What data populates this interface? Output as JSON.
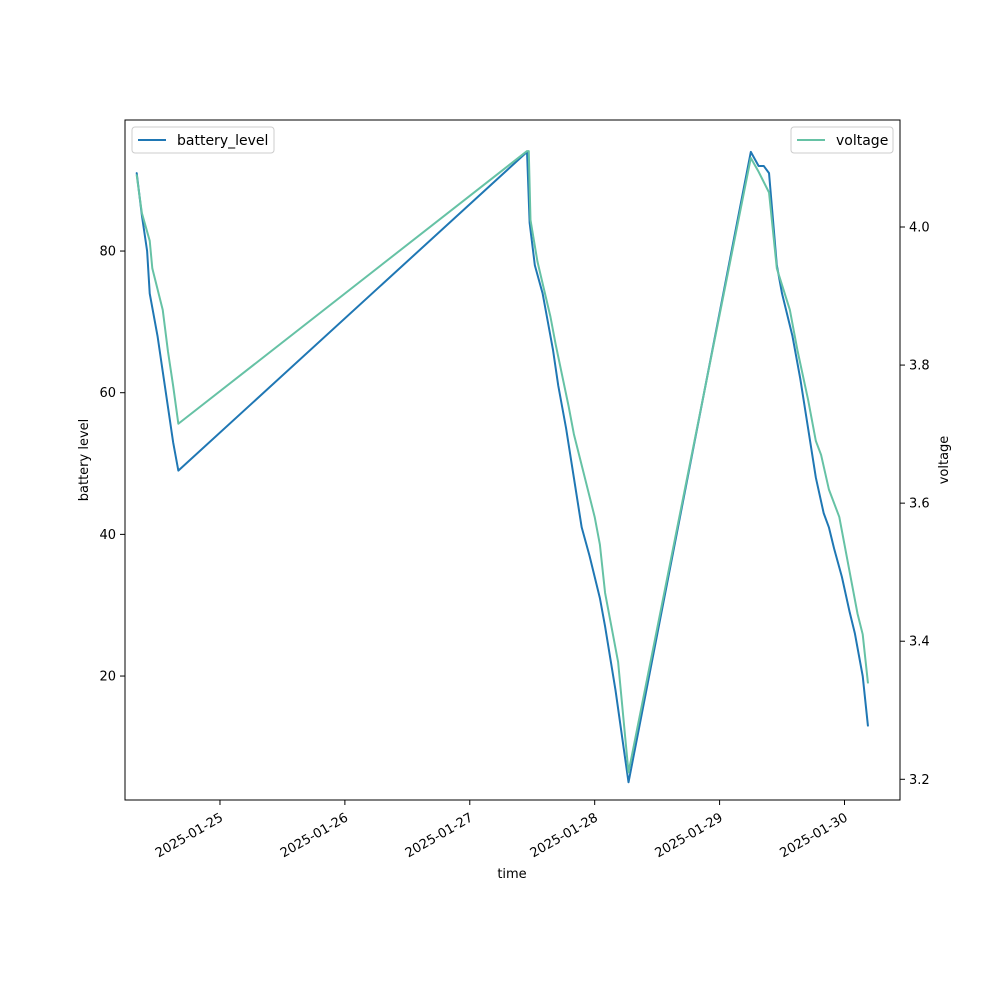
{
  "chart_data": {
    "type": "line",
    "xlabel": "time",
    "x_ticks": [
      "2025-01-25",
      "2025-01-26",
      "2025-01-27",
      "2025-01-28",
      "2025-01-29",
      "2025-01-30"
    ],
    "x_range": [
      "2025-01-24 05:45",
      "2025-01-30 10:40"
    ],
    "left_axis": {
      "label": "battery level",
      "ylim": [
        2.5,
        98.5
      ],
      "ticks": [
        20,
        40,
        60,
        80
      ]
    },
    "right_axis": {
      "label": "voltage",
      "ylim": [
        3.17,
        4.155
      ],
      "ticks": [
        "3.2",
        "3.4",
        "3.6",
        "3.8",
        "4.0"
      ]
    },
    "legend_left": {
      "placement": "upper-left"
    },
    "legend_right": {
      "placement": "upper-right"
    },
    "series": [
      {
        "name": "battery_level",
        "axis": "left",
        "color": "#1f77b4",
        "points": [
          [
            "2025-01-24 08:00",
            91
          ],
          [
            "2025-01-24 09:00",
            85
          ],
          [
            "2025-01-24 10:00",
            80
          ],
          [
            "2025-01-24 10:30",
            74
          ],
          [
            "2025-01-24 12:00",
            68
          ],
          [
            "2025-01-24 13:00",
            63
          ],
          [
            "2025-01-24 14:00",
            58
          ],
          [
            "2025-01-24 15:00",
            53
          ],
          [
            "2025-01-24 16:00",
            49
          ],
          [
            "2025-01-27 11:00",
            94
          ],
          [
            "2025-01-27 11:30",
            84
          ],
          [
            "2025-01-27 12:30",
            78
          ],
          [
            "2025-01-27 14:00",
            74
          ],
          [
            "2025-01-27 15:00",
            70
          ],
          [
            "2025-01-27 16:00",
            66
          ],
          [
            "2025-01-27 17:00",
            61
          ],
          [
            "2025-01-27 18:30",
            55
          ],
          [
            "2025-01-27 20:00",
            48
          ],
          [
            "2025-01-27 21:30",
            41
          ],
          [
            "2025-01-27 23:00",
            37
          ],
          [
            "2025-01-28 00:00",
            34
          ],
          [
            "2025-01-28 01:00",
            31
          ],
          [
            "2025-01-28 02:00",
            27
          ],
          [
            "2025-01-28 04:00",
            18
          ],
          [
            "2025-01-28 06:30",
            5
          ],
          [
            "2025-01-29 06:00",
            94
          ],
          [
            "2025-01-29 07:30",
            92
          ],
          [
            "2025-01-29 08:30",
            92
          ],
          [
            "2025-01-29 09:30",
            91
          ],
          [
            "2025-01-29 11:00",
            78
          ],
          [
            "2025-01-29 12:00",
            74
          ],
          [
            "2025-01-29 14:00",
            68
          ],
          [
            "2025-01-29 15:30",
            62
          ],
          [
            "2025-01-29 17:00",
            55
          ],
          [
            "2025-01-29 18:30",
            48
          ],
          [
            "2025-01-29 20:00",
            43
          ],
          [
            "2025-01-29 21:00",
            41
          ],
          [
            "2025-01-29 22:00",
            38
          ],
          [
            "2025-01-29 23:30",
            34
          ],
          [
            "2025-01-30 01:00",
            29
          ],
          [
            "2025-01-30 02:00",
            26
          ],
          [
            "2025-01-30 03:30",
            20
          ],
          [
            "2025-01-30 04:30",
            13
          ]
        ]
      },
      {
        "name": "voltage",
        "axis": "right",
        "color": "#66c2a5",
        "points": [
          [
            "2025-01-24 08:00",
            4.075
          ],
          [
            "2025-01-24 09:00",
            4.02
          ],
          [
            "2025-01-24 10:30",
            3.98
          ],
          [
            "2025-01-24 11:00",
            3.94
          ],
          [
            "2025-01-24 13:00",
            3.88
          ],
          [
            "2025-01-24 14:00",
            3.82
          ],
          [
            "2025-01-24 15:00",
            3.77
          ],
          [
            "2025-01-24 16:00",
            3.715
          ],
          [
            "2025-01-27 11:00",
            4.11
          ],
          [
            "2025-01-27 11:20",
            4.11
          ],
          [
            "2025-01-27 11:40",
            4.01
          ],
          [
            "2025-01-27 13:00",
            3.95
          ],
          [
            "2025-01-27 15:30",
            3.87
          ],
          [
            "2025-01-27 16:30",
            3.83
          ],
          [
            "2025-01-27 19:00",
            3.74
          ],
          [
            "2025-01-27 20:00",
            3.7
          ],
          [
            "2025-01-27 22:00",
            3.64
          ],
          [
            "2025-01-28 00:00",
            3.58
          ],
          [
            "2025-01-28 01:00",
            3.54
          ],
          [
            "2025-01-28 02:00",
            3.47
          ],
          [
            "2025-01-28 03:00",
            3.43
          ],
          [
            "2025-01-28 04:30",
            3.37
          ],
          [
            "2025-01-28 06:30",
            3.21
          ],
          [
            "2025-01-29 06:00",
            4.1
          ],
          [
            "2025-01-29 07:30",
            4.08
          ],
          [
            "2025-01-29 09:30",
            4.05
          ],
          [
            "2025-01-29 11:00",
            3.94
          ],
          [
            "2025-01-29 13:30",
            3.88
          ],
          [
            "2025-01-29 15:00",
            3.82
          ],
          [
            "2025-01-29 17:00",
            3.75
          ],
          [
            "2025-01-29 18:30",
            3.69
          ],
          [
            "2025-01-29 19:30",
            3.67
          ],
          [
            "2025-01-29 21:00",
            3.62
          ],
          [
            "2025-01-29 23:00",
            3.58
          ],
          [
            "2025-01-30 00:00",
            3.54
          ],
          [
            "2025-01-30 01:30",
            3.48
          ],
          [
            "2025-01-30 02:30",
            3.44
          ],
          [
            "2025-01-30 03:30",
            3.41
          ],
          [
            "2025-01-30 04:30",
            3.34
          ]
        ]
      }
    ]
  }
}
